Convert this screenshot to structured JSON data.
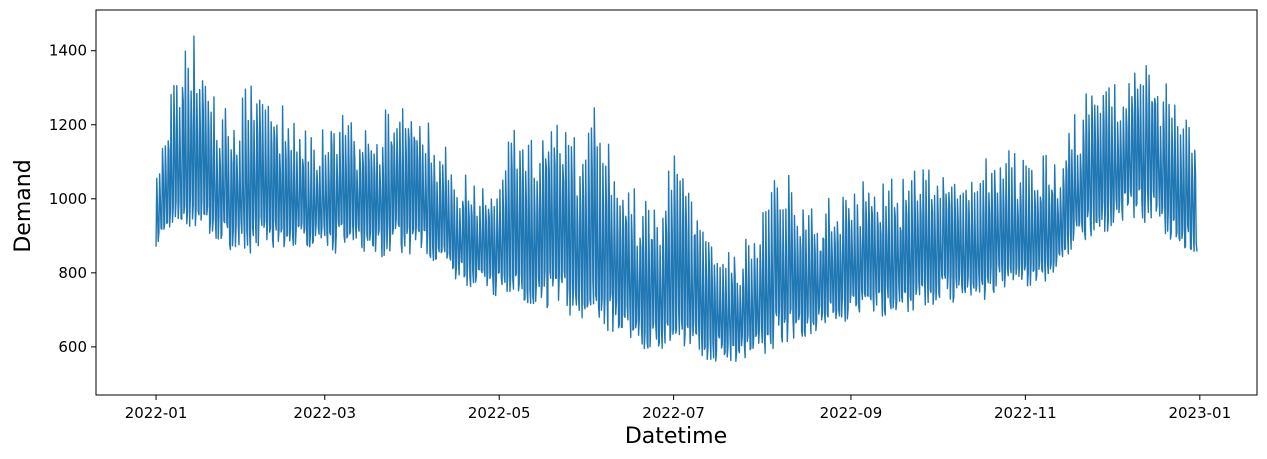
{
  "chart_data": {
    "type": "line",
    "title": "",
    "xlabel": "Datetime",
    "ylabel": "Demand",
    "x_ticks": [
      "2022-01",
      "2022-03",
      "2022-05",
      "2022-07",
      "2022-09",
      "2022-11",
      "2023-01"
    ],
    "y_ticks": [
      600,
      800,
      1000,
      1200,
      1400
    ],
    "xlim": [
      "2021-12-11",
      "2023-01-21"
    ],
    "ylim": [
      470,
      1510
    ],
    "grid": false,
    "legend": "none",
    "series_color": "#1f77b4",
    "x_range": [
      "2022-01-01",
      "2022-12-31"
    ],
    "series": [
      {
        "dates": [
          "2022-01-01",
          "2022-01-08",
          "2022-01-15",
          "2022-01-22",
          "2022-01-29",
          "2022-02-05",
          "2022-02-12",
          "2022-02-19",
          "2022-02-26",
          "2022-03-05",
          "2022-03-12",
          "2022-03-19",
          "2022-03-26",
          "2022-04-02",
          "2022-04-09",
          "2022-04-16",
          "2022-04-23",
          "2022-04-30",
          "2022-05-07",
          "2022-05-14",
          "2022-05-21",
          "2022-05-28",
          "2022-06-04",
          "2022-06-11",
          "2022-06-18",
          "2022-06-25",
          "2022-07-02",
          "2022-07-09",
          "2022-07-16",
          "2022-07-23",
          "2022-07-30",
          "2022-08-06",
          "2022-08-13",
          "2022-08-20",
          "2022-08-27",
          "2022-09-03",
          "2022-09-10",
          "2022-09-17",
          "2022-09-24",
          "2022-10-01",
          "2022-10-08",
          "2022-10-15",
          "2022-10-22",
          "2022-10-29",
          "2022-11-05",
          "2022-11-12",
          "2022-11-19",
          "2022-11-26",
          "2022-12-03",
          "2022-12-10",
          "2022-12-17",
          "2022-12-24",
          "2022-12-31"
        ],
        "high": [
          1080,
          1380,
          1460,
          1270,
          1240,
          1370,
          1270,
          1230,
          1150,
          1270,
          1200,
          1210,
          1300,
          1280,
          1180,
          1100,
          1040,
          1050,
          1270,
          1150,
          1290,
          1160,
          1290,
          1100,
          1020,
          1010,
          1150,
          1020,
          900,
          880,
          920,
          1140,
          1020,
          980,
          1020,
          1060,
          1080,
          1050,
          1090,
          1120,
          1090,
          1090,
          1150,
          1120,
          1130,
          1110,
          1250,
          1330,
          1330,
          1380,
          1380,
          1290,
          1180
        ],
        "low": [
          850,
          870,
          880,
          850,
          830,
          820,
          830,
          840,
          860,
          830,
          840,
          820,
          830,
          820,
          800,
          760,
          740,
          720,
          690,
          680,
          670,
          650,
          620,
          610,
          580,
          560,
          560,
          550,
          540,
          540,
          550,
          570,
          600,
          620,
          640,
          650,
          660,
          670,
          680,
          690,
          700,
          700,
          720,
          730,
          740,
          760,
          860,
          880,
          900,
          920,
          900,
          850,
          820
        ]
      }
    ]
  }
}
